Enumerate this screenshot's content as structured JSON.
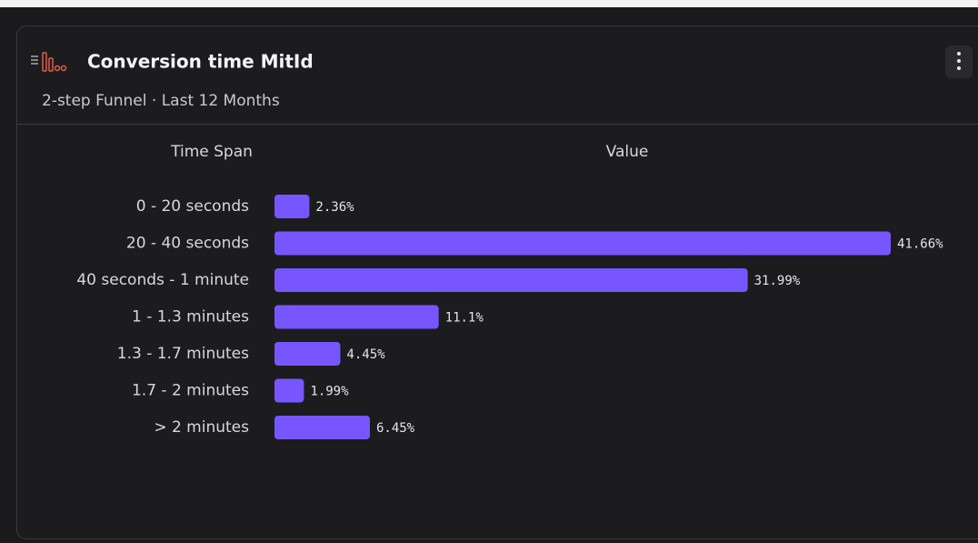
{
  "chart_data": {
    "type": "bar",
    "title": "Conversion time MitId",
    "subtitle": "2-step Funnel · Last 12 Months",
    "category_header": "Time Span",
    "value_header": "Value",
    "categories": [
      "0 - 20 seconds",
      "20 - 40 seconds",
      "40 seconds - 1 minute",
      "1 - 1.3 minutes",
      "1.3 - 1.7 minutes",
      "1.7 - 2 minutes",
      "> 2 minutes"
    ],
    "values": [
      2.36,
      41.66,
      31.99,
      11.1,
      4.45,
      1.99,
      6.45
    ],
    "value_labels": [
      "2.36%",
      "41.66%",
      "31.99%",
      "11.1%",
      "4.45%",
      "1.99%",
      "6.45%"
    ],
    "color": "#7856ff"
  }
}
